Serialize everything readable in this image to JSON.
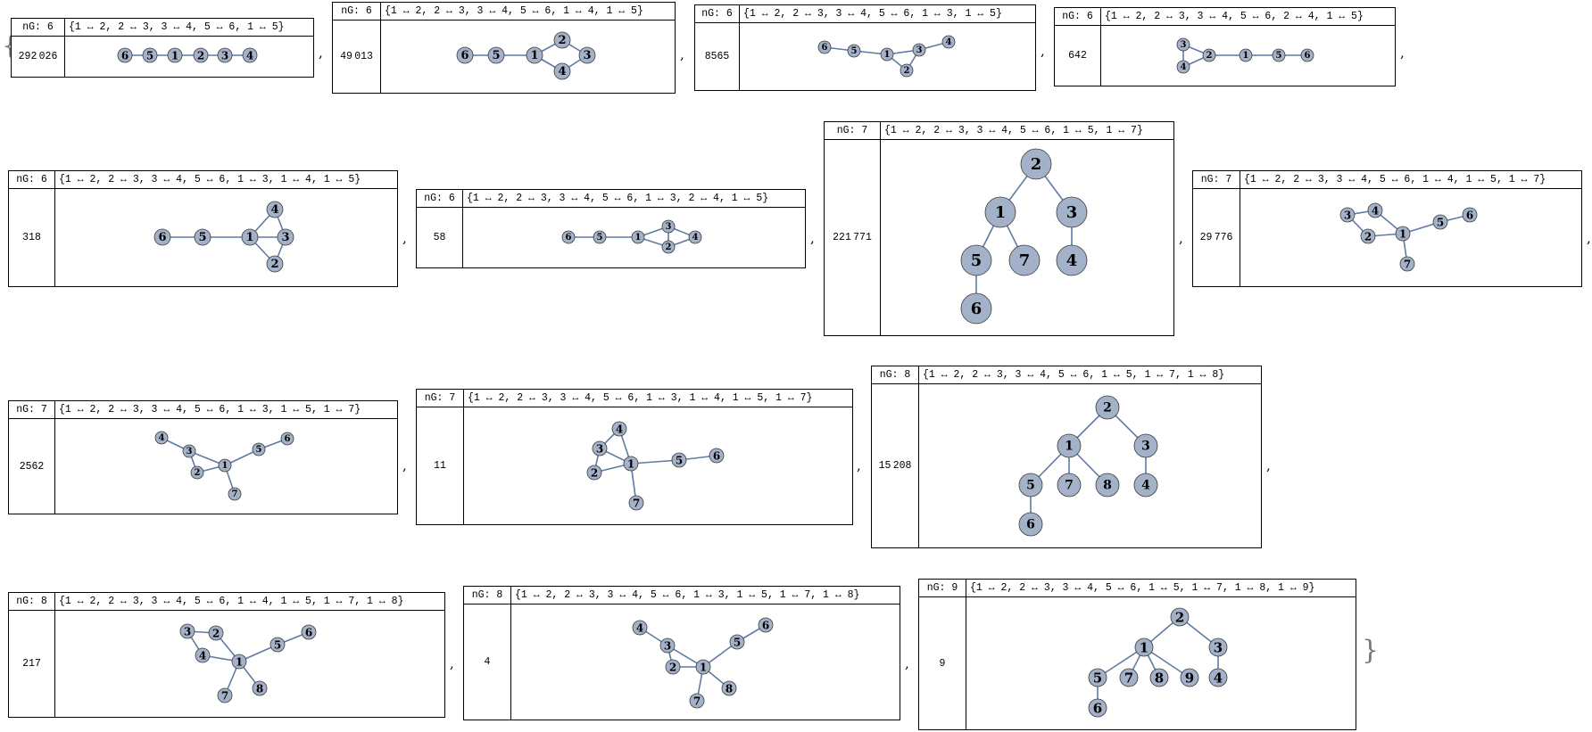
{
  "brackets": {
    "open": "{",
    "close": "}"
  },
  "separator": ",",
  "cards": [
    {
      "ng": "nG: 6",
      "edges": "{1 ↔ 2, 2 ↔ 3, 3 ↔ 4, 5 ↔ 6, 1 ↔ 5}",
      "count": "292 026",
      "vertices": [
        "1",
        "2",
        "3",
        "4",
        "5",
        "6"
      ],
      "edge_list": [
        [
          1,
          2
        ],
        [
          2,
          3
        ],
        [
          3,
          4
        ],
        [
          5,
          6
        ],
        [
          1,
          5
        ]
      ]
    },
    {
      "ng": "nG: 6",
      "edges": "{1 ↔ 2, 2 ↔ 3, 3 ↔ 4, 5 ↔ 6, 1 ↔ 4, 1 ↔ 5}",
      "count": "49 013",
      "vertices": [
        "1",
        "2",
        "3",
        "4",
        "5",
        "6"
      ],
      "edge_list": [
        [
          1,
          2
        ],
        [
          2,
          3
        ],
        [
          3,
          4
        ],
        [
          5,
          6
        ],
        [
          1,
          4
        ],
        [
          1,
          5
        ]
      ]
    },
    {
      "ng": "nG: 6",
      "edges": "{1 ↔ 2, 2 ↔ 3, 3 ↔ 4, 5 ↔ 6, 1 ↔ 3, 1 ↔ 5}",
      "count": "8565",
      "vertices": [
        "1",
        "2",
        "3",
        "4",
        "5",
        "6"
      ],
      "edge_list": [
        [
          1,
          2
        ],
        [
          2,
          3
        ],
        [
          3,
          4
        ],
        [
          5,
          6
        ],
        [
          1,
          3
        ],
        [
          1,
          5
        ]
      ]
    },
    {
      "ng": "nG: 6",
      "edges": "{1 ↔ 2, 2 ↔ 3, 3 ↔ 4, 5 ↔ 6, 2 ↔ 4, 1 ↔ 5}",
      "count": "642",
      "vertices": [
        "1",
        "2",
        "3",
        "4",
        "5",
        "6"
      ],
      "edge_list": [
        [
          1,
          2
        ],
        [
          2,
          3
        ],
        [
          3,
          4
        ],
        [
          5,
          6
        ],
        [
          2,
          4
        ],
        [
          1,
          5
        ]
      ]
    },
    {
      "ng": "nG: 6",
      "edges": "{1 ↔ 2, 2 ↔ 3, 3 ↔ 4, 5 ↔ 6, 1 ↔ 3, 1 ↔ 4, 1 ↔ 5}",
      "count": "318",
      "vertices": [
        "1",
        "2",
        "3",
        "4",
        "5",
        "6"
      ],
      "edge_list": [
        [
          1,
          2
        ],
        [
          2,
          3
        ],
        [
          3,
          4
        ],
        [
          5,
          6
        ],
        [
          1,
          3
        ],
        [
          1,
          4
        ],
        [
          1,
          5
        ]
      ]
    },
    {
      "ng": "nG: 6",
      "edges": "{1 ↔ 2, 2 ↔ 3, 3 ↔ 4, 5 ↔ 6, 1 ↔ 3, 2 ↔ 4, 1 ↔ 5}",
      "count": "58",
      "vertices": [
        "1",
        "2",
        "3",
        "4",
        "5",
        "6"
      ],
      "edge_list": [
        [
          1,
          2
        ],
        [
          2,
          3
        ],
        [
          3,
          4
        ],
        [
          5,
          6
        ],
        [
          1,
          3
        ],
        [
          2,
          4
        ],
        [
          1,
          5
        ]
      ]
    },
    {
      "ng": "nG: 7",
      "edges": "{1 ↔ 2, 2 ↔ 3, 3 ↔ 4, 5 ↔ 6, 1 ↔ 5, 1 ↔ 7}",
      "count": "221 771",
      "vertices": [
        "1",
        "2",
        "3",
        "4",
        "5",
        "6",
        "7"
      ],
      "edge_list": [
        [
          1,
          2
        ],
        [
          2,
          3
        ],
        [
          3,
          4
        ],
        [
          5,
          6
        ],
        [
          1,
          5
        ],
        [
          1,
          7
        ]
      ]
    },
    {
      "ng": "nG: 7",
      "edges": "{1 ↔ 2, 2 ↔ 3, 3 ↔ 4, 5 ↔ 6, 1 ↔ 4, 1 ↔ 5, 1 ↔ 7}",
      "count": "29 776",
      "vertices": [
        "1",
        "2",
        "3",
        "4",
        "5",
        "6",
        "7"
      ],
      "edge_list": [
        [
          1,
          2
        ],
        [
          2,
          3
        ],
        [
          3,
          4
        ],
        [
          5,
          6
        ],
        [
          1,
          4
        ],
        [
          1,
          5
        ],
        [
          1,
          7
        ]
      ]
    },
    {
      "ng": "nG: 7",
      "edges": "{1 ↔ 2, 2 ↔ 3, 3 ↔ 4, 5 ↔ 6, 1 ↔ 3, 1 ↔ 5, 1 ↔ 7}",
      "count": "2562",
      "vertices": [
        "1",
        "2",
        "3",
        "4",
        "5",
        "6",
        "7"
      ],
      "edge_list": [
        [
          1,
          2
        ],
        [
          2,
          3
        ],
        [
          3,
          4
        ],
        [
          5,
          6
        ],
        [
          1,
          3
        ],
        [
          1,
          5
        ],
        [
          1,
          7
        ]
      ]
    },
    {
      "ng": "nG: 7",
      "edges": "{1 ↔ 2, 2 ↔ 3, 3 ↔ 4, 5 ↔ 6, 1 ↔ 3, 1 ↔ 4, 1 ↔ 5, 1 ↔ 7}",
      "count": "11",
      "vertices": [
        "1",
        "2",
        "3",
        "4",
        "5",
        "6",
        "7"
      ],
      "edge_list": [
        [
          1,
          2
        ],
        [
          2,
          3
        ],
        [
          3,
          4
        ],
        [
          5,
          6
        ],
        [
          1,
          3
        ],
        [
          1,
          4
        ],
        [
          1,
          5
        ],
        [
          1,
          7
        ]
      ]
    },
    {
      "ng": "nG: 8",
      "edges": "{1 ↔ 2, 2 ↔ 3, 3 ↔ 4, 5 ↔ 6, 1 ↔ 5, 1 ↔ 7, 1 ↔ 8}",
      "count": "15 208",
      "vertices": [
        "1",
        "2",
        "3",
        "4",
        "5",
        "6",
        "7",
        "8"
      ],
      "edge_list": [
        [
          1,
          2
        ],
        [
          2,
          3
        ],
        [
          3,
          4
        ],
        [
          5,
          6
        ],
        [
          1,
          5
        ],
        [
          1,
          7
        ],
        [
          1,
          8
        ]
      ]
    },
    {
      "ng": "nG: 8",
      "edges": "{1 ↔ 2, 2 ↔ 3, 3 ↔ 4, 5 ↔ 6, 1 ↔ 4, 1 ↔ 5, 1 ↔ 7, 1 ↔ 8}",
      "count": "217",
      "vertices": [
        "1",
        "2",
        "3",
        "4",
        "5",
        "6",
        "7",
        "8"
      ],
      "edge_list": [
        [
          1,
          2
        ],
        [
          2,
          3
        ],
        [
          3,
          4
        ],
        [
          5,
          6
        ],
        [
          1,
          4
        ],
        [
          1,
          5
        ],
        [
          1,
          7
        ],
        [
          1,
          8
        ]
      ]
    },
    {
      "ng": "nG: 8",
      "edges": "{1 ↔ 2, 2 ↔ 3, 3 ↔ 4, 5 ↔ 6, 1 ↔ 3, 1 ↔ 5, 1 ↔ 7, 1 ↔ 8}",
      "count": "4",
      "vertices": [
        "1",
        "2",
        "3",
        "4",
        "5",
        "6",
        "7",
        "8"
      ],
      "edge_list": [
        [
          1,
          2
        ],
        [
          2,
          3
        ],
        [
          3,
          4
        ],
        [
          5,
          6
        ],
        [
          1,
          3
        ],
        [
          1,
          5
        ],
        [
          1,
          7
        ],
        [
          1,
          8
        ]
      ]
    },
    {
      "ng": "nG: 9",
      "edges": "{1 ↔ 2, 2 ↔ 3, 3 ↔ 4, 5 ↔ 6, 1 ↔ 5, 1 ↔ 7, 1 ↔ 8, 1 ↔ 9}",
      "count": "9",
      "vertices": [
        "1",
        "2",
        "3",
        "4",
        "5",
        "6",
        "7",
        "8",
        "9"
      ],
      "edge_list": [
        [
          1,
          2
        ],
        [
          2,
          3
        ],
        [
          3,
          4
        ],
        [
          5,
          6
        ],
        [
          1,
          5
        ],
        [
          1,
          7
        ],
        [
          1,
          8
        ],
        [
          1,
          9
        ]
      ]
    }
  ],
  "colors": {
    "vertex_fill": "#a3b1c9",
    "vertex_stroke": "#3c3c3c",
    "edge": "#5f7ba3"
  }
}
